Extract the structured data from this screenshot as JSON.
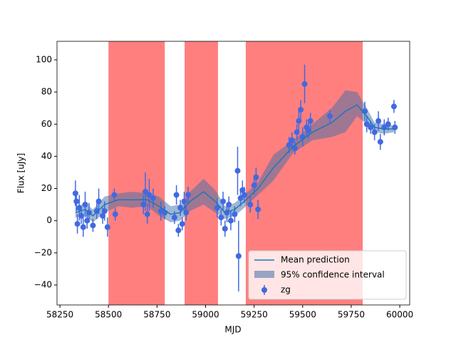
{
  "chart_data": {
    "type": "gp-fit",
    "x_label": "MJD",
    "y_label": "Flux [uJy]",
    "xlim": [
      58235,
      60051
    ],
    "ylim": [
      -52.4,
      111.5
    ],
    "xticks": [
      58250,
      58500,
      58750,
      59000,
      59250,
      59500,
      59750,
      60000
    ],
    "yticks": [
      {
        "value": -40,
        "label": "−40"
      },
      {
        "value": -20,
        "label": "−20"
      },
      0,
      20,
      40,
      60,
      80,
      100
    ],
    "spans": {
      "color": "#ff0000",
      "ranges": [
        [
          58500,
          58790
        ],
        [
          58892,
          59064
        ],
        [
          59207,
          59809
        ]
      ]
    },
    "legend": "lower right",
    "mean": {
      "name": "Mean prediction",
      "color": "#1f77b4",
      "x": [
        58330,
        58380,
        58420,
        58480,
        58550,
        58620,
        58700,
        58760,
        58820,
        58870,
        58920,
        58990,
        59050,
        59100,
        59150,
        59200,
        59270,
        59350,
        59450,
        59550,
        59650,
        59720,
        59780,
        59830,
        59870,
        59920,
        59970
      ],
      "values": [
        5,
        7,
        3,
        10,
        13,
        13,
        13,
        9,
        4,
        5,
        12,
        18,
        12,
        5,
        7,
        12,
        20,
        33,
        46,
        55,
        61,
        68,
        72,
        65,
        58,
        57,
        57
      ]
    },
    "band": {
      "name": "95% confidence interval",
      "color": "#3f6fa8",
      "lower": [
        2,
        3,
        -1,
        5,
        9,
        8,
        9,
        3,
        -1,
        0,
        6,
        10,
        5,
        1,
        3,
        8,
        16,
        25,
        42,
        50,
        52,
        55,
        65,
        60,
        55,
        54,
        55
      ],
      "upper": [
        8,
        11,
        7,
        15,
        17,
        18,
        17,
        15,
        9,
        10,
        18,
        26,
        19,
        9,
        11,
        16,
        24,
        41,
        50,
        60,
        70,
        81,
        80,
        70,
        61,
        60,
        59
      ]
    },
    "points": {
      "name": "zg",
      "color": "#4169e1",
      "x": [
        58330,
        58335,
        58340,
        58350,
        58360,
        58370,
        58380,
        58390,
        58400,
        58420,
        58440,
        58450,
        58470,
        58480,
        58495,
        58530,
        58535,
        58680,
        58690,
        58700,
        58710,
        58730,
        58770,
        58790,
        58840,
        58850,
        58860,
        58870,
        58880,
        58890,
        58900,
        58910,
        59060,
        59080,
        59090,
        59100,
        59110,
        59120,
        59130,
        59150,
        59165,
        59170,
        59180,
        59190,
        59200,
        59230,
        59250,
        59260,
        59270,
        59430,
        59445,
        59460,
        59470,
        59480,
        59490,
        59500,
        59510,
        59520,
        59530,
        59540,
        59640,
        59820,
        59830,
        59850,
        59870,
        59890,
        59900,
        59920,
        59940,
        59970,
        59975
      ],
      "values": [
        17,
        12,
        -2,
        8,
        3,
        -4,
        10,
        0,
        5,
        -3,
        6,
        12,
        3,
        6,
        -4,
        16,
        4,
        10,
        18,
        4,
        16,
        14,
        6,
        5,
        2,
        16,
        -6,
        8,
        -2,
        12,
        5,
        16,
        8,
        2,
        12,
        -5,
        5,
        10,
        0,
        4,
        31,
        -22,
        14,
        19,
        16,
        10,
        22,
        27,
        7,
        47,
        50,
        45,
        55,
        62,
        69,
        52,
        85,
        58,
        56,
        62,
        65,
        68,
        60,
        58,
        55,
        62,
        49,
        58,
        60,
        71,
        58
      ],
      "errors": [
        8,
        6,
        6,
        8,
        5,
        6,
        8,
        5,
        6,
        4,
        5,
        8,
        5,
        6,
        6,
        4,
        4,
        6,
        12,
        6,
        10,
        6,
        6,
        4,
        4,
        6,
        4,
        5,
        4,
        6,
        5,
        5,
        6,
        5,
        6,
        5,
        6,
        5,
        6,
        5,
        15,
        22,
        5,
        6,
        5,
        5,
        6,
        6,
        6,
        5,
        5,
        4,
        5,
        6,
        6,
        6,
        12,
        5,
        5,
        5,
        4,
        6,
        5,
        4,
        5,
        6,
        5,
        5,
        4,
        4,
        4
      ]
    }
  }
}
